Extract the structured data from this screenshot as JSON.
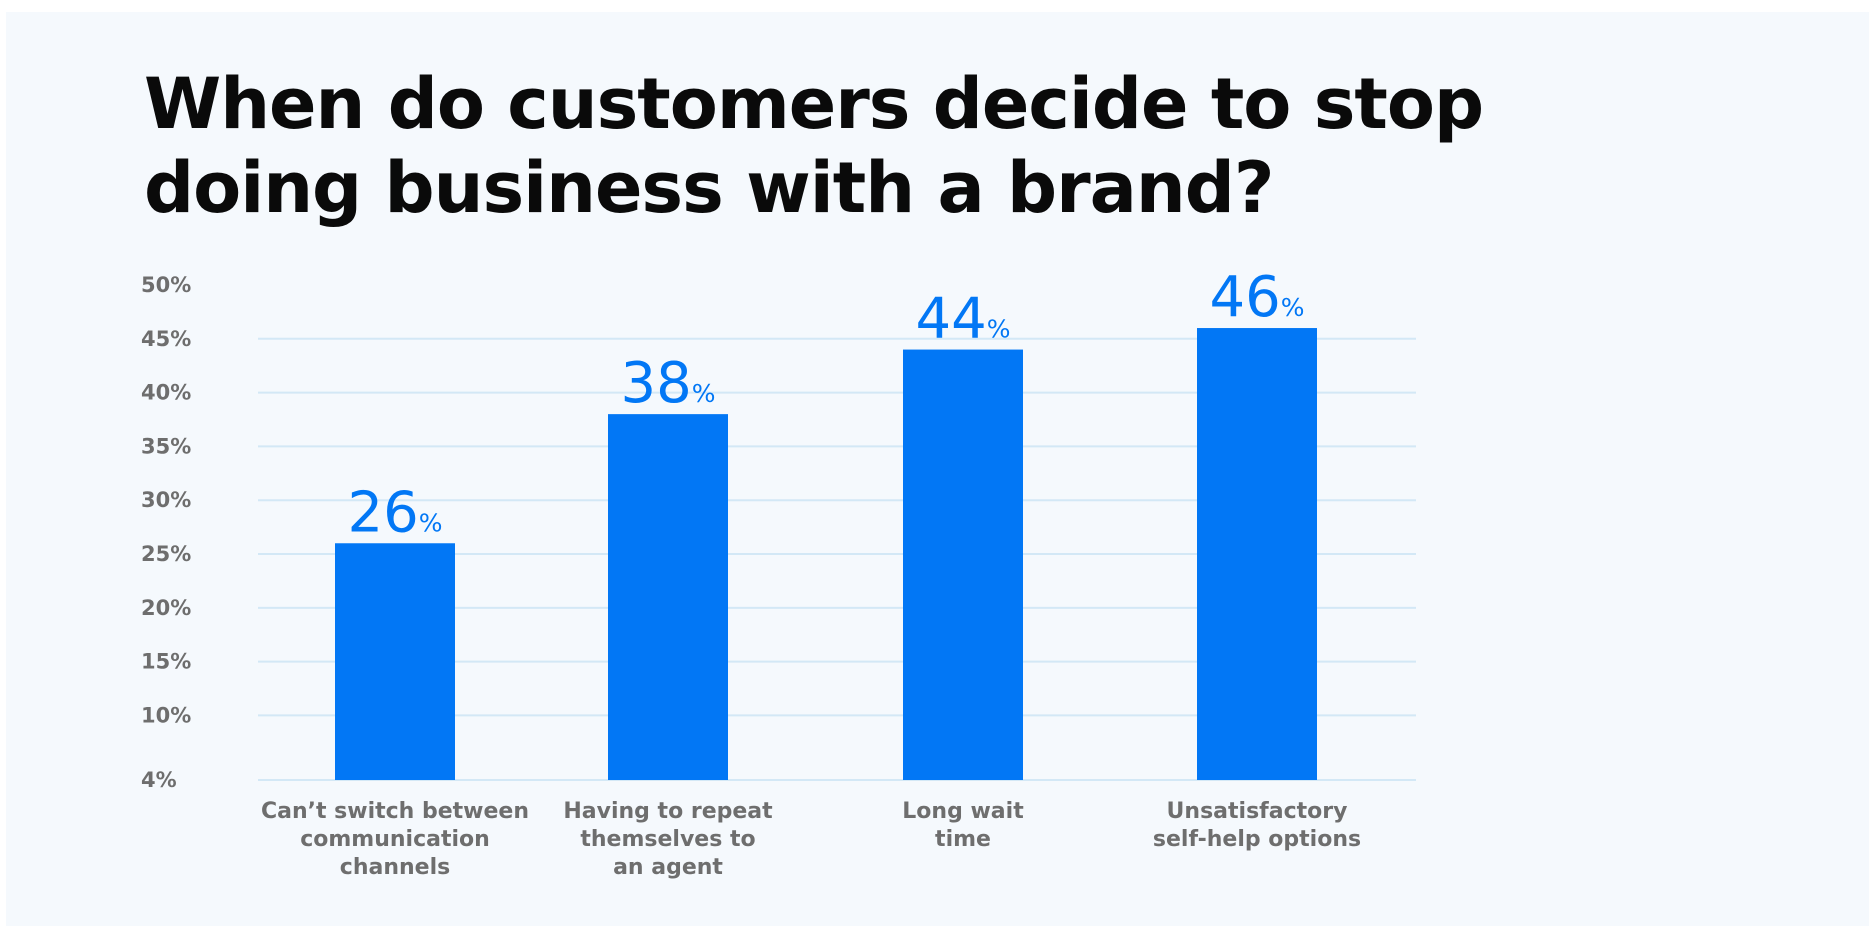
{
  "chart_data": {
    "type": "bar",
    "title": "When do customers decide to stop doing business with a brand?",
    "categories": [
      [
        "Can’t switch between",
        "communication",
        "channels"
      ],
      [
        "Having to repeat",
        "themselves to",
        "an agent"
      ],
      [
        "Long wait",
        "time"
      ],
      [
        "Unsatisfactory",
        "self-help options"
      ]
    ],
    "values": [
      26,
      38,
      44,
      46
    ],
    "value_suffix": "%",
    "y_ticks": [
      4,
      10,
      15,
      20,
      25,
      30,
      35,
      40,
      45,
      50
    ],
    "y_tick_labels": [
      "4%",
      "10%",
      "15%",
      "20%",
      "25%",
      "30%",
      "35%",
      "40%",
      "45%",
      "50%"
    ],
    "ylim": [
      4,
      50
    ],
    "grid": true,
    "colors": {
      "bar": "#0277f5",
      "grid": "#d3e8f6",
      "background": "#f5f9fd",
      "title": "#0a0a0a",
      "axis_text": "#6e6e6e"
    }
  }
}
